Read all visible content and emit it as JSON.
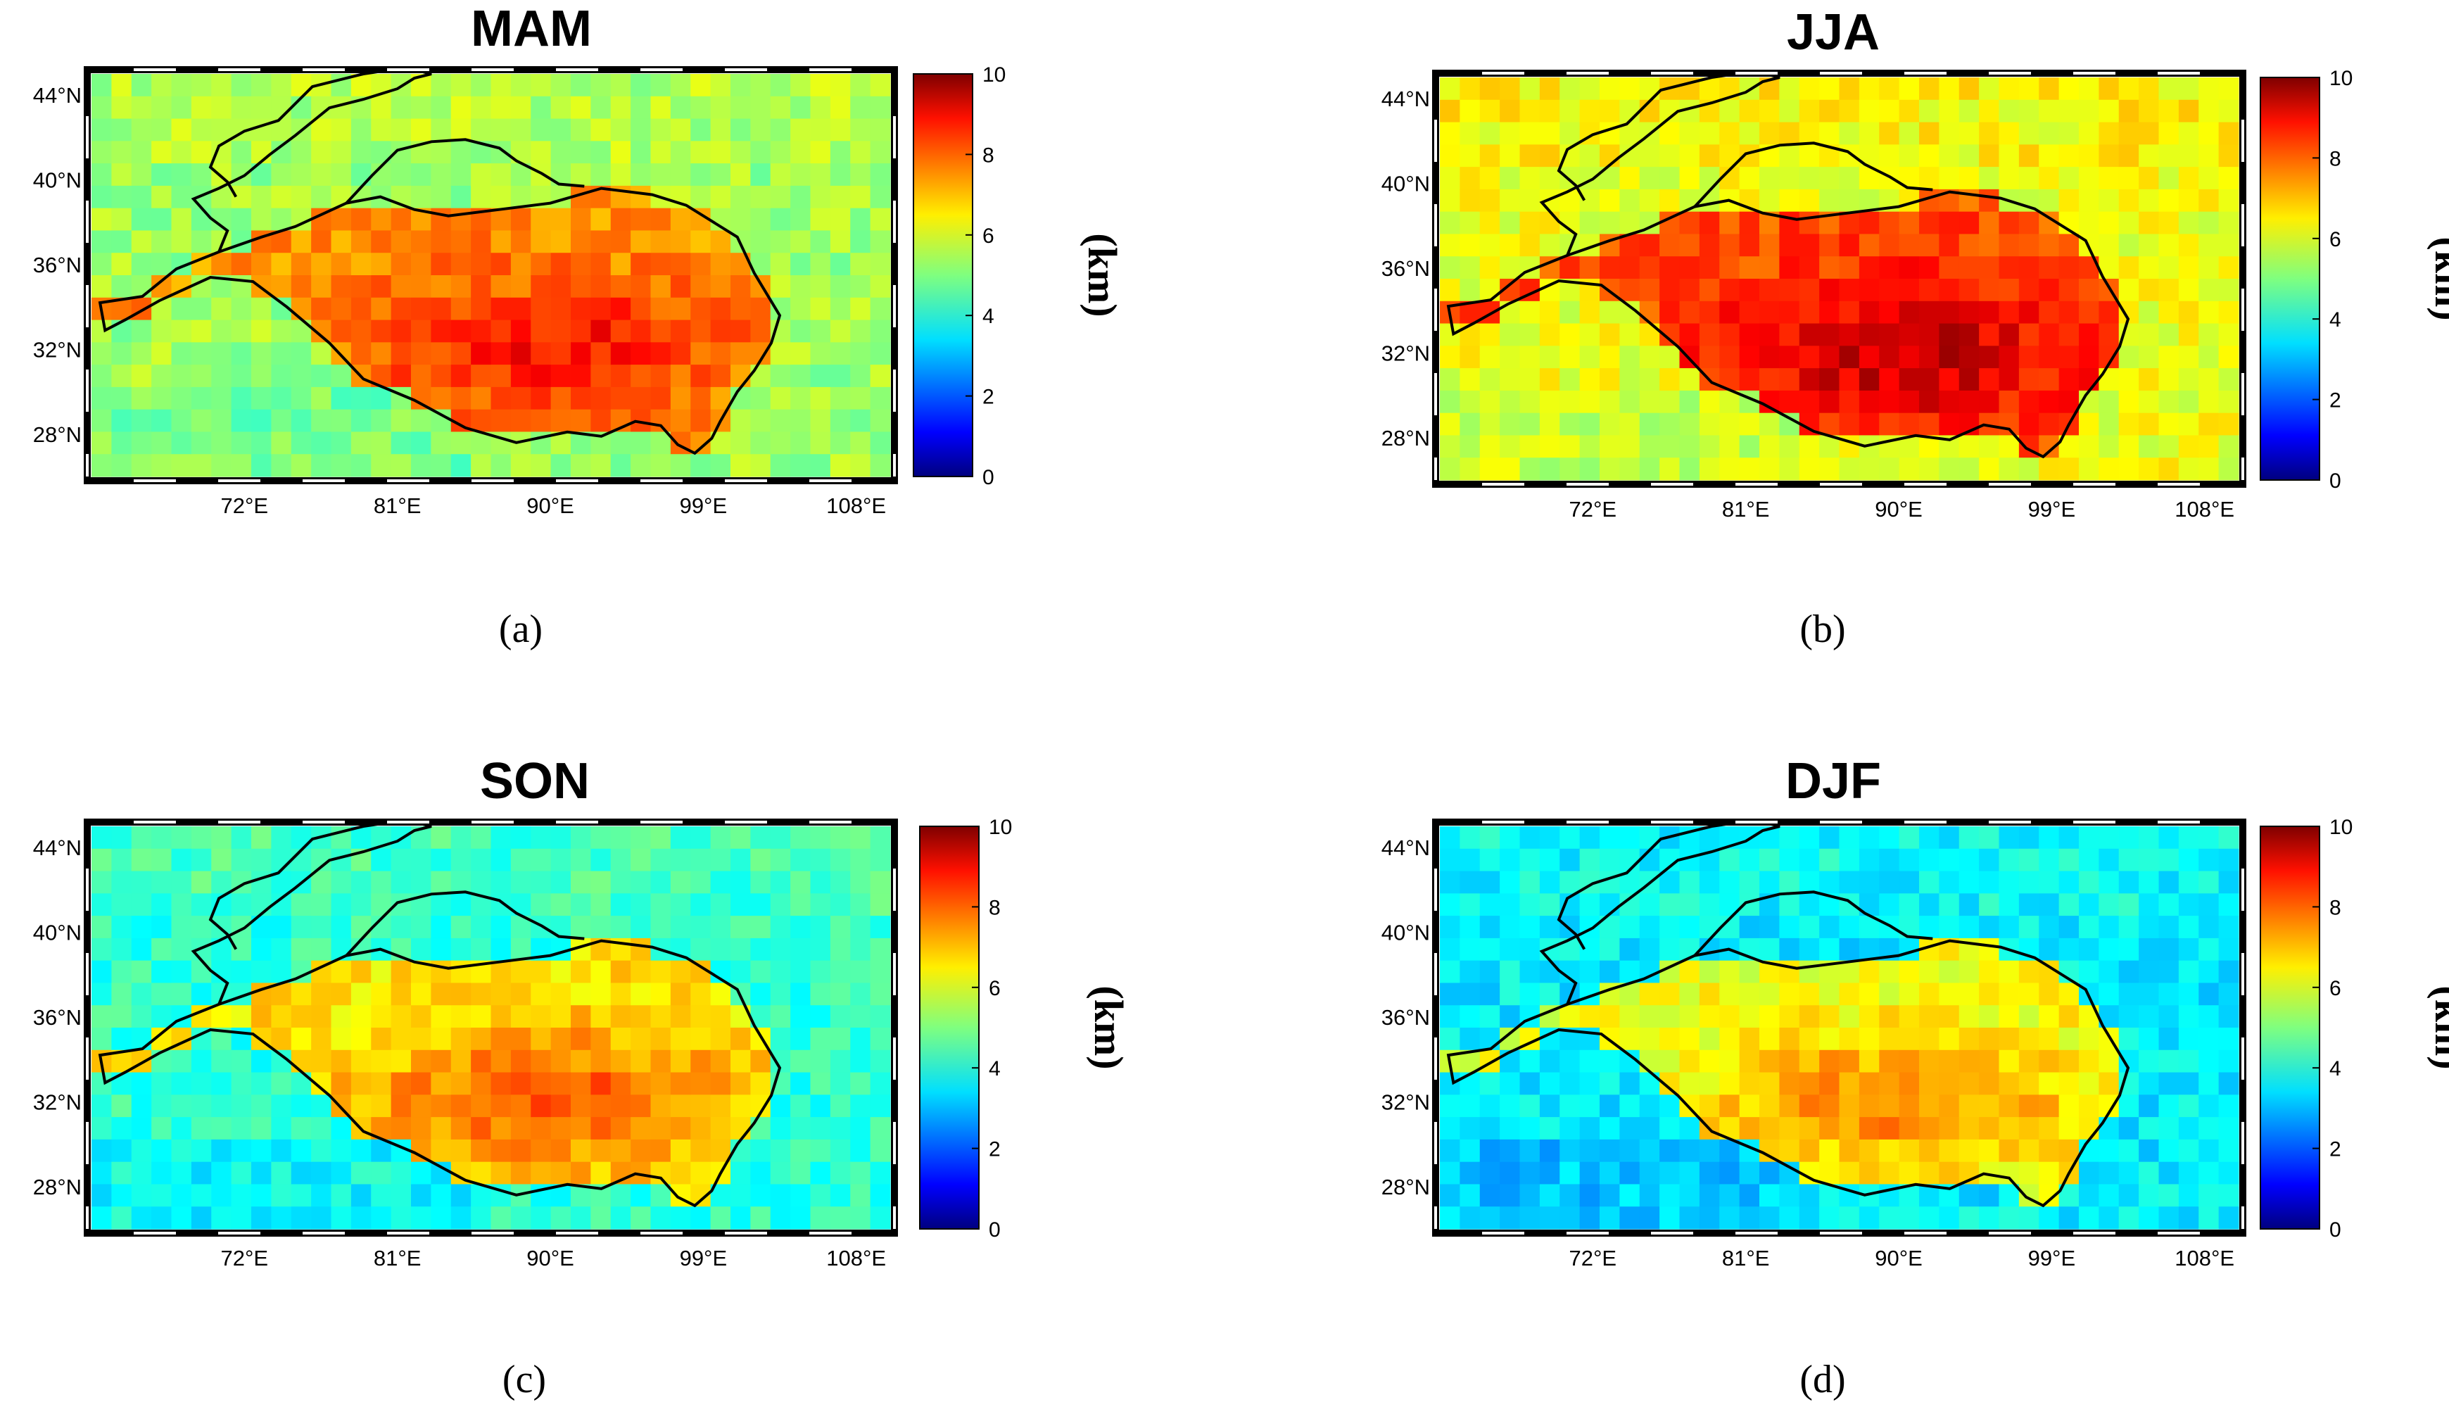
{
  "figure": {
    "panels": [
      {
        "title": "MAM",
        "caption": "(a)"
      },
      {
        "title": "JJA",
        "caption": "(b)"
      },
      {
        "title": "SON",
        "caption": "(c)"
      },
      {
        "title": "DJF",
        "caption": "(d)"
      }
    ]
  },
  "chart_data": [
    {
      "type": "heatmap",
      "title": "MAM",
      "caption": "(a)",
      "unit": "(km)",
      "colorbar_range": [
        0,
        10
      ],
      "colorbar_ticks": [
        "0",
        "2",
        "4",
        "6",
        "8",
        "10"
      ],
      "x_ticks": [
        "72°E",
        "81°E",
        "90°E",
        "99°E",
        "108°E"
      ],
      "y_ticks": [
        "44°N",
        "40°N",
        "36°N",
        "32°N",
        "28°N"
      ],
      "lon_range": [
        63,
        110
      ],
      "lat_range": [
        26,
        45
      ],
      "plateau_mean_km": 8,
      "surroundings_mean_km": 5.3
    },
    {
      "type": "heatmap",
      "title": "JJA",
      "caption": "(b)",
      "unit": "(km)",
      "colorbar_range": [
        0,
        10
      ],
      "colorbar_ticks": [
        "0",
        "2",
        "4",
        "6",
        "8",
        "10"
      ],
      "x_ticks": [
        "72°E",
        "81°E",
        "90°E",
        "99°E",
        "108°E"
      ],
      "y_ticks": [
        "44°N",
        "40°N",
        "36°N",
        "32°N",
        "28°N"
      ],
      "lon_range": [
        63,
        110
      ],
      "lat_range": [
        26,
        45
      ],
      "plateau_mean_km": 8.7,
      "surroundings_mean_km": 6.1
    },
    {
      "type": "heatmap",
      "title": "SON",
      "caption": "(c)",
      "unit": "(km)",
      "colorbar_range": [
        0,
        10
      ],
      "colorbar_ticks": [
        "0",
        "2",
        "4",
        "6",
        "8",
        "10"
      ],
      "x_ticks": [
        "72°E",
        "81°E",
        "90°E",
        "99°E",
        "108°E"
      ],
      "y_ticks": [
        "44°N",
        "40°N",
        "36°N",
        "32°N",
        "28°N"
      ],
      "lon_range": [
        63,
        110
      ],
      "lat_range": [
        26,
        45
      ],
      "plateau_mean_km": 7.2,
      "surroundings_mean_km": 4.2
    },
    {
      "type": "heatmap",
      "title": "DJF",
      "caption": "(d)",
      "unit": "(km)",
      "colorbar_range": [
        0,
        10
      ],
      "colorbar_ticks": [
        "0",
        "2",
        "4",
        "6",
        "8",
        "10"
      ],
      "x_ticks": [
        "72°E",
        "81°E",
        "90°E",
        "99°E",
        "108°E"
      ],
      "y_ticks": [
        "44°N",
        "40°N",
        "36°N",
        "32°N",
        "28°N"
      ],
      "lon_range": [
        63,
        110
      ],
      "lat_range": [
        26,
        45
      ],
      "plateau_mean_km": 6.8,
      "surroundings_mean_km": 3.6
    }
  ]
}
